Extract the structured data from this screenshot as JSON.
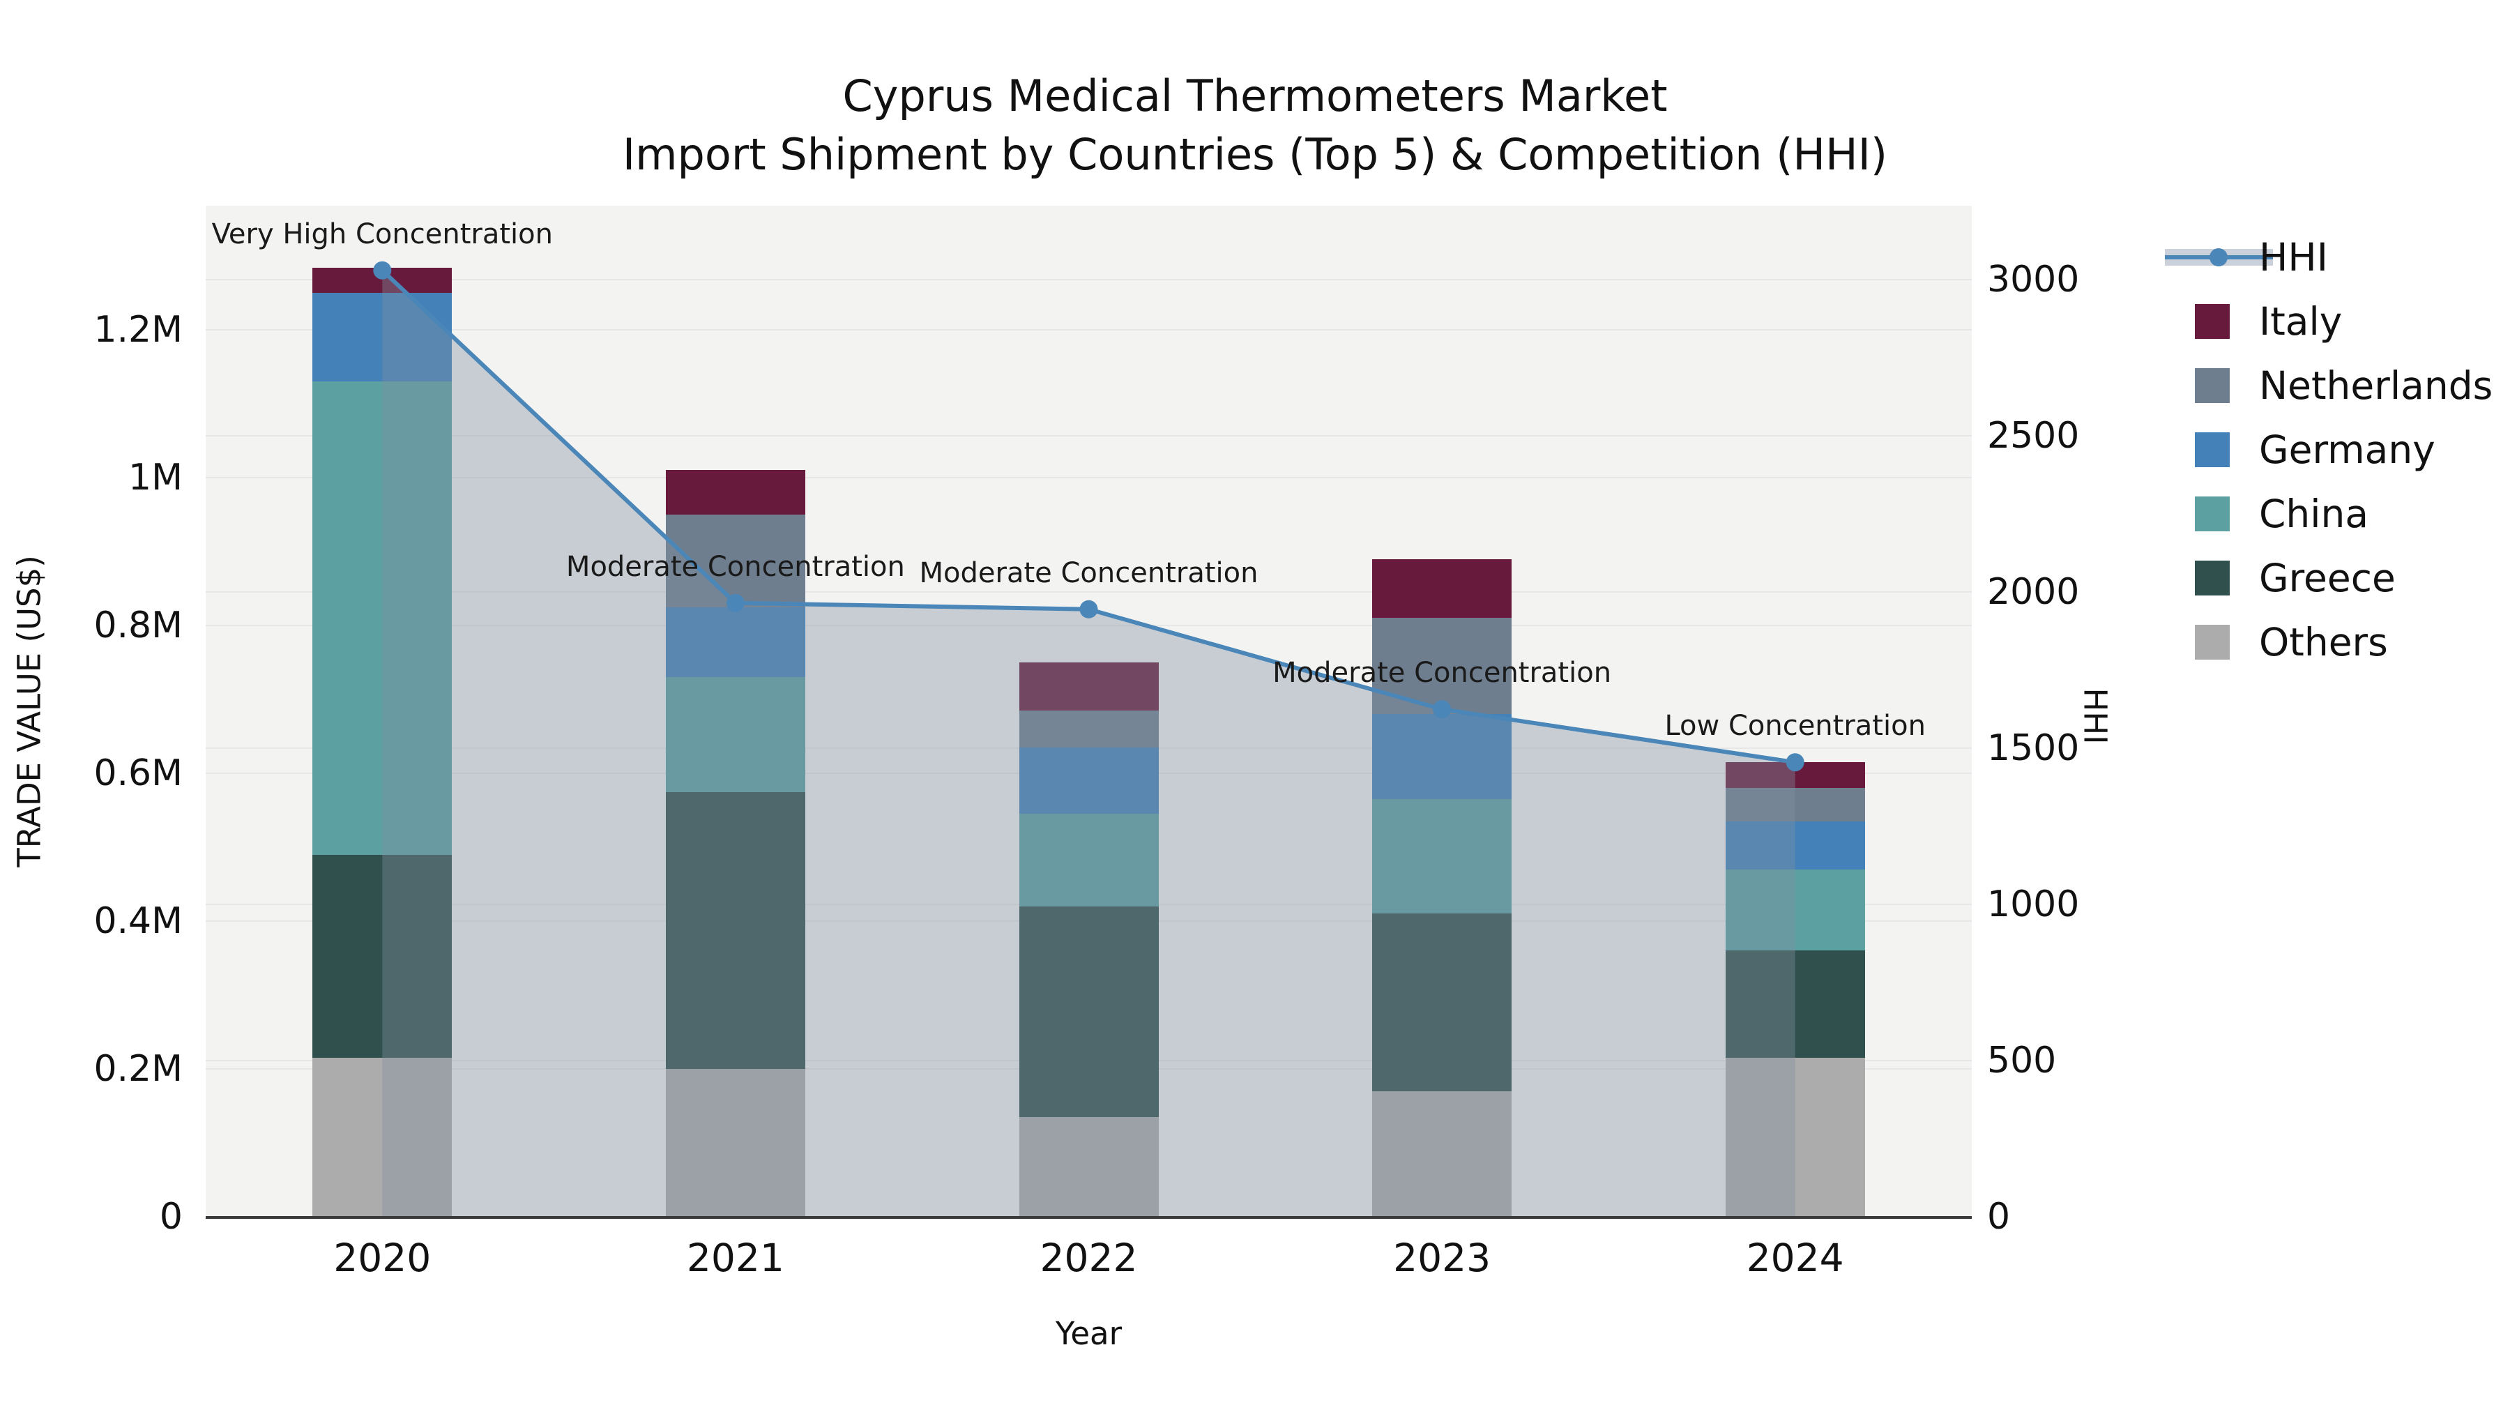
{
  "title": {
    "line1": "Cyprus Medical Thermometers Market",
    "line2": "Import Shipment by Countries (Top 5) & Competition (HHI)"
  },
  "colors": {
    "Italy": "#681A3C",
    "Netherlands": "#6F7E8E",
    "Germany": "#4381B8",
    "China": "#5DA0A2",
    "Greece": "#2F504D",
    "Others": "#ACACAC",
    "hhi_line": "#4A86B8",
    "hhi_fill": "rgba(130,144,160,0.38)",
    "plot_bg": "#F3F3F2",
    "grid": "#E7E7E7",
    "spine": "#3A3A3A"
  },
  "legend": {
    "entries": [
      "HHI",
      "Italy",
      "Netherlands",
      "Germany",
      "China",
      "Greece",
      "Others"
    ]
  },
  "chart_data": {
    "type": "bar",
    "subtype": "stacked-bars-with-line",
    "title": "Cyprus Medical Thermometers Market Import Shipment by Countries (Top 5) & Competition (HHI)",
    "xlabel": "Year",
    "ylabel_left": "TRADE VALUE (US$)",
    "ylabel_right": "HHI",
    "categories": [
      "2020",
      "2021",
      "2022",
      "2023",
      "2024"
    ],
    "stack_order": [
      "Others",
      "Greece",
      "China",
      "Germany",
      "Netherlands",
      "Italy"
    ],
    "series": [
      {
        "name": "Others",
        "values": [
          215000,
          200000,
          135000,
          170000,
          215000
        ]
      },
      {
        "name": "Greece",
        "values": [
          275000,
          375000,
          285000,
          240000,
          145000
        ]
      },
      {
        "name": "China",
        "values": [
          640000,
          155000,
          125000,
          155000,
          110000
        ]
      },
      {
        "name": "Germany",
        "values": [
          120000,
          95000,
          90000,
          115000,
          65000
        ]
      },
      {
        "name": "Netherlands",
        "values": [
          0,
          125000,
          50000,
          130000,
          45000
        ]
      },
      {
        "name": "Italy",
        "values": [
          34000,
          60000,
          65000,
          80000,
          35000
        ]
      }
    ],
    "line_series": {
      "name": "HHI",
      "axis": "right",
      "values": [
        3030,
        1965,
        1945,
        1625,
        1455
      ]
    },
    "annotations": [
      {
        "category": "2020",
        "text": "Very High Concentration"
      },
      {
        "category": "2021",
        "text": "Moderate Concentration"
      },
      {
        "category": "2022",
        "text": "Moderate Concentration"
      },
      {
        "category": "2023",
        "text": "Moderate Concentration"
      },
      {
        "category": "2024",
        "text": "Low Concentration"
      }
    ],
    "y_left_axis": {
      "ticks": [
        0,
        200000,
        400000,
        600000,
        800000,
        1000000,
        1200000
      ],
      "tick_labels": [
        "0",
        "0.2M",
        "0.4M",
        "0.6M",
        "0.8M",
        "1M",
        "1.2M"
      ],
      "range_max": 1368000
    },
    "y_right_axis": {
      "ticks": [
        0,
        500,
        1000,
        1500,
        2000,
        2500,
        3000
      ],
      "tick_labels": [
        "0",
        "500",
        "1000",
        "1500",
        "2000",
        "2500",
        "3000"
      ],
      "range_max": 3237
    },
    "grid": true,
    "legend_position": "right"
  }
}
